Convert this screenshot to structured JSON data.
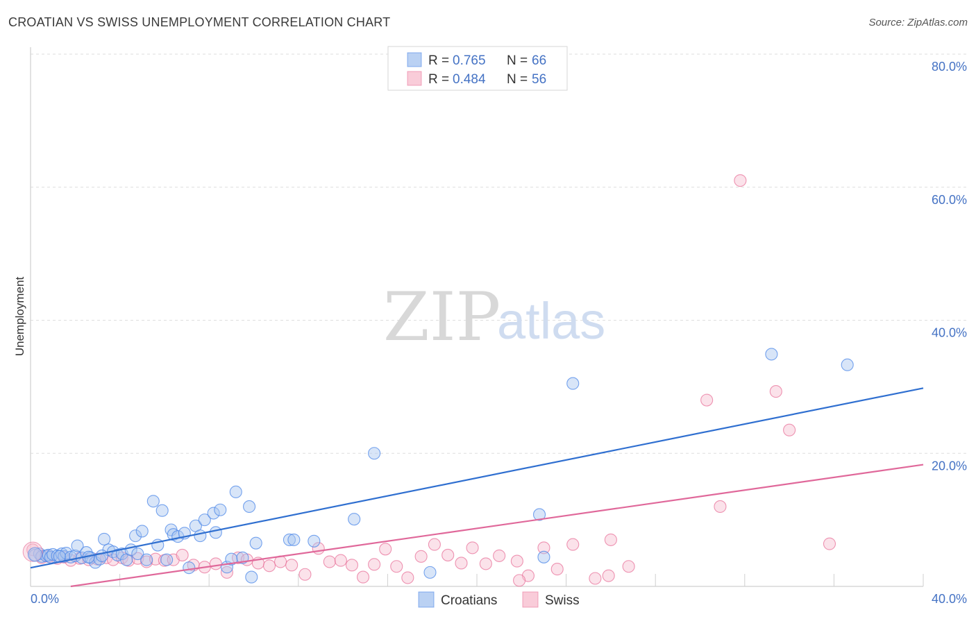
{
  "title": "CROATIAN VS SWISS UNEMPLOYMENT CORRELATION CHART",
  "source": "Source: ZipAtlas.com",
  "watermark": {
    "zip": "ZIP",
    "atlas": "atlas"
  },
  "chart_data": {
    "type": "scatter",
    "xlabel": "",
    "ylabel": "Unemployment",
    "xlim": [
      0,
      40
    ],
    "ylim": [
      0,
      80
    ],
    "x_tick_labels": [
      {
        "value": 0,
        "label": "0.0%"
      },
      {
        "value": 40,
        "label": "40.0%"
      }
    ],
    "y_tick_labels": [
      {
        "value": 20,
        "label": "20.0%"
      },
      {
        "value": 40,
        "label": "40.0%"
      },
      {
        "value": 60,
        "label": "60.0%"
      },
      {
        "value": 80,
        "label": "80.0%"
      }
    ],
    "grid": "horizontal dashed",
    "legend_position": "top-center",
    "series": [
      {
        "name": "Croatians",
        "color": "#4a86e8",
        "fill": "#a9c6f0",
        "stats": {
          "r_label": "R =",
          "r": "0.765",
          "n_label": "N =",
          "n": "66"
        },
        "trend": {
          "x": [
            0,
            40
          ],
          "y": [
            2.8,
            29.8
          ]
        },
        "points": [
          [
            0.2,
            4.7
          ],
          [
            0.4,
            4.9
          ],
          [
            0.5,
            4.5
          ],
          [
            0.7,
            4.6
          ],
          [
            0.8,
            4.7
          ],
          [
            0.9,
            4.4
          ],
          [
            1.0,
            4.8
          ],
          [
            1.2,
            4.6
          ],
          [
            1.4,
            4.9
          ],
          [
            1.5,
            4.5
          ],
          [
            1.6,
            5.0
          ],
          [
            1.8,
            4.4
          ],
          [
            2.0,
            4.6
          ],
          [
            2.1,
            6.1
          ],
          [
            2.3,
            4.3
          ],
          [
            2.5,
            5.1
          ],
          [
            2.7,
            4.3
          ],
          [
            2.9,
            3.6
          ],
          [
            3.1,
            4.1
          ],
          [
            3.3,
            7.1
          ],
          [
            3.5,
            5.5
          ],
          [
            3.7,
            5.2
          ],
          [
            3.9,
            4.7
          ],
          [
            4.1,
            4.9
          ],
          [
            4.3,
            4.0
          ],
          [
            4.5,
            5.5
          ],
          [
            4.7,
            7.6
          ],
          [
            4.8,
            4.9
          ],
          [
            5.0,
            8.3
          ],
          [
            5.2,
            4.0
          ],
          [
            5.5,
            12.8
          ],
          [
            5.7,
            6.2
          ],
          [
            5.9,
            11.4
          ],
          [
            6.1,
            4.0
          ],
          [
            6.3,
            8.5
          ],
          [
            6.4,
            7.8
          ],
          [
            6.6,
            7.5
          ],
          [
            6.9,
            8.0
          ],
          [
            7.1,
            2.8
          ],
          [
            7.4,
            9.1
          ],
          [
            7.6,
            7.6
          ],
          [
            7.8,
            10.0
          ],
          [
            8.2,
            11.0
          ],
          [
            8.3,
            8.1
          ],
          [
            8.5,
            11.5
          ],
          [
            8.8,
            2.9
          ],
          [
            9.0,
            4.1
          ],
          [
            9.2,
            14.2
          ],
          [
            9.5,
            4.3
          ],
          [
            9.8,
            12.0
          ],
          [
            9.9,
            1.4
          ],
          [
            10.1,
            6.5
          ],
          [
            11.6,
            7.0
          ],
          [
            11.8,
            7.0
          ],
          [
            12.7,
            6.8
          ],
          [
            14.5,
            10.1
          ],
          [
            15.4,
            20.0
          ],
          [
            17.9,
            2.1
          ],
          [
            22.8,
            10.8
          ],
          [
            23.0,
            4.4
          ],
          [
            24.3,
            30.5
          ],
          [
            33.2,
            34.9
          ],
          [
            36.6,
            33.3
          ],
          [
            1.3,
            4.5
          ],
          [
            2.6,
            4.4
          ],
          [
            3.2,
            4.6
          ]
        ]
      },
      {
        "name": "Swiss",
        "color": "#e8729a",
        "fill": "#f7bfd0",
        "stats": {
          "r_label": "R =",
          "r": "0.484",
          "n_label": "N =",
          "n": "56"
        },
        "trend": {
          "x": [
            1.8,
            40
          ],
          "y": [
            0,
            18.3
          ]
        },
        "points": [
          [
            0.1,
            5.5
          ],
          [
            0.5,
            4.3
          ],
          [
            0.8,
            4.5
          ],
          [
            1.2,
            4.2
          ],
          [
            1.5,
            4.4
          ],
          [
            1.8,
            3.9
          ],
          [
            2.2,
            4.2
          ],
          [
            2.6,
            4.0
          ],
          [
            3.0,
            4.1
          ],
          [
            3.4,
            4.3
          ],
          [
            3.7,
            4.0
          ],
          [
            4.1,
            4.3
          ],
          [
            4.4,
            3.9
          ],
          [
            4.8,
            4.2
          ],
          [
            5.2,
            3.7
          ],
          [
            5.6,
            4.1
          ],
          [
            6.0,
            3.9
          ],
          [
            6.4,
            4.0
          ],
          [
            6.8,
            4.7
          ],
          [
            7.3,
            3.2
          ],
          [
            7.8,
            2.9
          ],
          [
            8.3,
            3.4
          ],
          [
            8.8,
            2.1
          ],
          [
            9.3,
            4.3
          ],
          [
            9.7,
            4.0
          ],
          [
            10.2,
            3.5
          ],
          [
            10.7,
            3.1
          ],
          [
            11.2,
            3.7
          ],
          [
            11.7,
            3.2
          ],
          [
            12.3,
            1.8
          ],
          [
            12.9,
            5.7
          ],
          [
            13.4,
            3.7
          ],
          [
            13.9,
            3.9
          ],
          [
            14.4,
            3.2
          ],
          [
            14.9,
            1.4
          ],
          [
            15.4,
            3.3
          ],
          [
            15.9,
            5.6
          ],
          [
            16.4,
            3.0
          ],
          [
            16.9,
            1.3
          ],
          [
            17.5,
            4.5
          ],
          [
            18.1,
            6.3
          ],
          [
            18.7,
            4.7
          ],
          [
            19.3,
            3.5
          ],
          [
            19.8,
            5.8
          ],
          [
            20.4,
            3.4
          ],
          [
            21.0,
            4.6
          ],
          [
            21.8,
            3.8
          ],
          [
            22.3,
            1.6
          ],
          [
            23.0,
            5.8
          ],
          [
            23.6,
            2.6
          ],
          [
            24.3,
            6.3
          ],
          [
            25.3,
            1.2
          ],
          [
            26.0,
            7.0
          ],
          [
            30.3,
            28.0
          ],
          [
            31.8,
            61.0
          ],
          [
            33.4,
            29.3
          ]
        ]
      }
    ],
    "extra_swiss": [
      [
        34.0,
        23.5
      ],
      [
        30.9,
        12.0
      ],
      [
        35.8,
        6.4
      ],
      [
        26.8,
        3.0
      ],
      [
        21.9,
        0.9
      ],
      [
        25.9,
        1.6
      ]
    ]
  }
}
